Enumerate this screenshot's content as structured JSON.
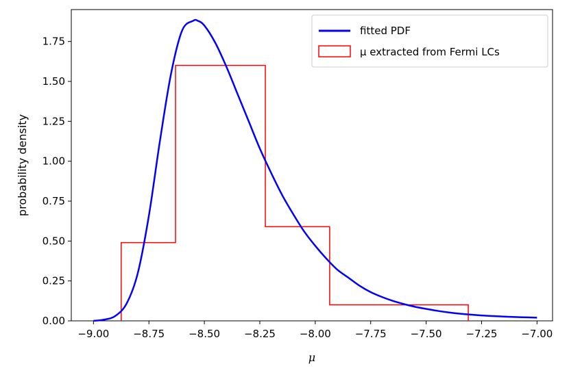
{
  "chart_data": {
    "type": "line",
    "title": "",
    "xlabel": "μ",
    "ylabel": "probability density",
    "xlim": [
      -9.1,
      -6.93
    ],
    "ylim": [
      0,
      1.95
    ],
    "xticks": [
      -9.0,
      -8.75,
      -8.5,
      -8.25,
      -8.0,
      -7.75,
      -7.5,
      -7.25,
      -7.0
    ],
    "xtick_labels": [
      "−9.00",
      "−8.75",
      "−8.50",
      "−8.25",
      "−8.00",
      "−7.75",
      "−7.50",
      "−7.25",
      "−7.00"
    ],
    "yticks": [
      0.0,
      0.25,
      0.5,
      0.75,
      1.0,
      1.25,
      1.5,
      1.75
    ],
    "ytick_labels": [
      "0.00",
      "0.25",
      "0.50",
      "0.75",
      "1.00",
      "1.25",
      "1.50",
      "1.75"
    ],
    "grid": false,
    "legend_position": "top-right",
    "series": [
      {
        "name": "fitted PDF",
        "kind": "line",
        "color": "#0000ff",
        "x": [
          -9.0,
          -8.95,
          -8.9,
          -8.85,
          -8.8,
          -8.75,
          -8.7,
          -8.65,
          -8.6,
          -8.55,
          -8.53,
          -8.5,
          -8.45,
          -8.4,
          -8.35,
          -8.3,
          -8.25,
          -8.2,
          -8.15,
          -8.1,
          -8.05,
          -8.0,
          -7.95,
          -7.9,
          -7.85,
          -7.8,
          -7.75,
          -7.7,
          -7.65,
          -7.6,
          -7.55,
          -7.5,
          -7.45,
          -7.4,
          -7.35,
          -7.3,
          -7.25,
          -7.2,
          -7.15,
          -7.1,
          -7.05,
          -7.0
        ],
        "y": [
          0.0,
          0.008,
          0.032,
          0.11,
          0.3,
          0.66,
          1.13,
          1.55,
          1.82,
          1.88,
          1.88,
          1.85,
          1.74,
          1.59,
          1.42,
          1.25,
          1.08,
          0.93,
          0.79,
          0.67,
          0.56,
          0.47,
          0.39,
          0.32,
          0.27,
          0.22,
          0.18,
          0.15,
          0.125,
          0.105,
          0.088,
          0.075,
          0.063,
          0.053,
          0.045,
          0.039,
          0.034,
          0.03,
          0.027,
          0.024,
          0.022,
          0.02
        ]
      },
      {
        "name": "μ extracted from Fermi LCs",
        "kind": "step-histogram",
        "color": "#ff0000",
        "bin_edges": [
          -8.875,
          -8.63,
          -8.225,
          -7.935,
          -7.31
        ],
        "values": [
          0.49,
          1.6,
          0.59,
          0.1
        ]
      }
    ]
  }
}
